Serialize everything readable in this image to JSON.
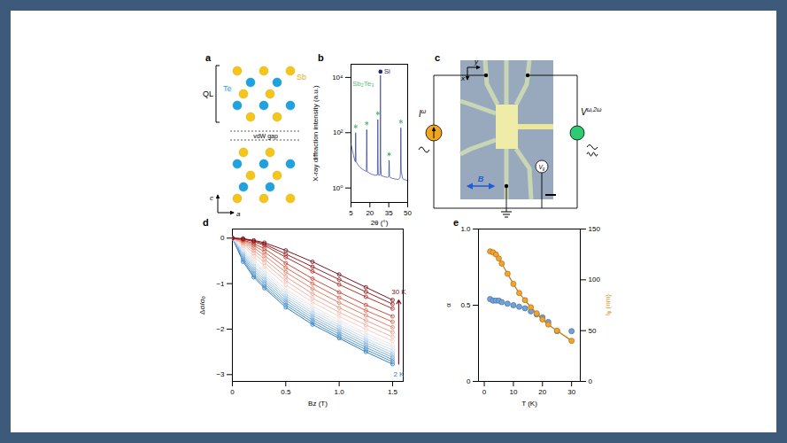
{
  "panels": {
    "a": {
      "letter": "a",
      "ql": "QL",
      "gap": "vdW gap",
      "axes": {
        "up": "c",
        "right": "a"
      },
      "atoms": [
        {
          "label": "Sb",
          "color": "#f5c518"
        },
        {
          "label": "Te",
          "color": "#1fa3de"
        }
      ]
    },
    "c": {
      "letter": "c",
      "axes": {
        "down": "x",
        "right": "y"
      },
      "current_source": {
        "text": "I",
        "sup": "ω",
        "color": "#f2a51f"
      },
      "voltmeter": {
        "text": "V",
        "sup": "ω,2ω",
        "color": "#2ecc71"
      },
      "gate": {
        "text": "V",
        "sub": "g"
      },
      "field": {
        "text": "B",
        "color": "#1f5bd6"
      }
    }
  },
  "chart_data": [
    {
      "panel": "b",
      "type": "line",
      "log": "y",
      "color": "#2b3a9e",
      "x_label": "2θ (°)",
      "y_label": "X-ray diffraction intensity (a.u.)",
      "xlim": [
        5,
        50
      ],
      "xticks": [
        5,
        20,
        35,
        50
      ],
      "ylim": [
        0.3,
        30000
      ],
      "yticks": [
        {
          "value": 1,
          "label": "10⁰"
        },
        {
          "value": 100,
          "label": "10²"
        },
        {
          "value": 10000,
          "label": "10⁴"
        }
      ],
      "x": [
        5,
        6,
        7,
        8,
        8.4,
        8.7,
        9,
        10,
        11,
        12,
        13,
        14,
        15,
        16,
        17,
        17.2,
        17.5,
        17.8,
        18,
        19,
        20,
        21,
        22,
        23,
        24,
        25,
        26,
        26.3,
        26.6,
        27,
        28,
        28.2,
        28.4,
        28.6,
        29,
        30,
        31,
        32,
        33,
        34,
        35,
        35.3,
        35.6,
        36,
        37,
        38,
        39,
        40,
        41,
        42,
        43,
        44,
        44.3,
        44.6,
        44.9,
        46,
        47,
        48,
        49,
        50
      ],
      "values": [
        40,
        24,
        15,
        10,
        9,
        100,
        9,
        7.5,
        6.5,
        5.8,
        5.2,
        4.8,
        4.5,
        4.2,
        4,
        4.5,
        130,
        4.5,
        3.8,
        3.6,
        3.4,
        3.2,
        3.1,
        3,
        2.9,
        2.9,
        3,
        300,
        3.2,
        2.9,
        3,
        8,
        12000,
        8,
        2.8,
        2.7,
        2.6,
        2.5,
        2.5,
        2.4,
        2.6,
        10,
        2.6,
        2.4,
        2.3,
        2.2,
        2.2,
        2.1,
        2.1,
        2,
        2.1,
        2.4,
        4,
        150,
        4,
        2.2,
        2,
        2,
        1.9,
        1.9
      ],
      "peaks": {
        "x": [
          8.7,
          17.5,
          26.3,
          35.3,
          44.6
        ],
        "y": [
          100,
          130,
          300,
          10,
          150
        ],
        "color": "#5cb87a",
        "marker": "asterisk"
      },
      "annotations": [
        {
          "text": "Sb₂Te₃",
          "x": 6,
          "y": 6000,
          "color": "#5cb87a"
        },
        {
          "text": "Si",
          "x": 28.4,
          "y": 12000,
          "color": "#1f2a7a",
          "marker": "circle"
        }
      ]
    },
    {
      "panel": "d",
      "type": "line",
      "marker": "circle",
      "x_label": "Bz (T)",
      "y_label": "Δσ/σ₀",
      "xlim": [
        0,
        1.6
      ],
      "xticks": [
        0,
        0.5,
        {
          "value": 1,
          "label": "1.0"
        },
        1.5
      ],
      "ylim": [
        -3.15,
        0.2
      ],
      "yticks": [
        0,
        {
          "value": -1,
          "label": "−1"
        },
        {
          "value": -2,
          "label": "−2"
        },
        {
          "value": -3,
          "label": "−3"
        }
      ],
      "x": [
        0,
        0.1,
        0.2,
        0.3,
        0.5,
        0.75,
        1,
        1.25,
        1.5
      ],
      "series": [
        {
          "name": "2 K",
          "color": "#2f7fc1",
          "values": [
            0,
            -0.52,
            -0.86,
            -1.1,
            -1.52,
            -1.9,
            -2.2,
            -2.5,
            -2.77
          ]
        },
        {
          "color": "#4a8fca",
          "values": [
            0,
            -0.48,
            -0.82,
            -1.06,
            -1.47,
            -1.85,
            -2.16,
            -2.45,
            -2.72
          ]
        },
        {
          "color": "#649fd2",
          "values": [
            0,
            -0.44,
            -0.77,
            -1.01,
            -1.42,
            -1.8,
            -2.11,
            -2.4,
            -2.67
          ]
        },
        {
          "color": "#7eafda",
          "values": [
            0,
            -0.4,
            -0.72,
            -0.96,
            -1.37,
            -1.75,
            -2.06,
            -2.35,
            -2.62
          ]
        },
        {
          "color": "#98bfe2",
          "values": [
            0,
            -0.36,
            -0.67,
            -0.91,
            -1.32,
            -1.7,
            -2.01,
            -2.3,
            -2.57
          ]
        },
        {
          "color": "#b1cfea",
          "values": [
            0,
            -0.32,
            -0.62,
            -0.86,
            -1.27,
            -1.65,
            -1.96,
            -2.25,
            -2.52
          ]
        },
        {
          "color": "#c9ddf0",
          "values": [
            0,
            -0.28,
            -0.57,
            -0.81,
            -1.22,
            -1.6,
            -1.91,
            -2.2,
            -2.46
          ]
        },
        {
          "color": "#dfe9f3",
          "values": [
            0,
            -0.25,
            -0.52,
            -0.76,
            -1.17,
            -1.55,
            -1.86,
            -2.14,
            -2.4
          ]
        },
        {
          "color": "#f3e4e0",
          "values": [
            0,
            -0.22,
            -0.47,
            -0.71,
            -1.12,
            -1.5,
            -1.81,
            -2.09,
            -2.35
          ]
        },
        {
          "color": "#f6d0c6",
          "values": [
            0,
            -0.17,
            -0.4,
            -0.62,
            -1.03,
            -1.41,
            -1.72,
            -2,
            -2.26
          ]
        },
        {
          "color": "#f2b8a8",
          "values": [
            0,
            -0.13,
            -0.33,
            -0.54,
            -0.94,
            -1.32,
            -1.63,
            -1.91,
            -2.17
          ]
        },
        {
          "color": "#ec9e8a",
          "values": [
            0,
            -0.1,
            -0.27,
            -0.46,
            -0.85,
            -1.22,
            -1.53,
            -1.81,
            -2.07
          ]
        },
        {
          "color": "#e4826c",
          "values": [
            0,
            -0.07,
            -0.21,
            -0.38,
            -0.75,
            -1.11,
            -1.42,
            -1.7,
            -1.96
          ]
        },
        {
          "color": "#d96650",
          "values": [
            0,
            -0.05,
            -0.16,
            -0.3,
            -0.65,
            -1,
            -1.31,
            -1.59,
            -1.84
          ]
        },
        {
          "color": "#c94b3b",
          "values": [
            0,
            -0.04,
            -0.12,
            -0.23,
            -0.55,
            -0.89,
            -1.19,
            -1.47,
            -1.72
          ]
        },
        {
          "color": "#b3332c",
          "values": [
            0,
            -0.02,
            -0.08,
            -0.16,
            -0.42,
            -0.73,
            -1.02,
            -1.29,
            -1.55
          ]
        },
        {
          "color": "#9a2127",
          "values": [
            0,
            -0.02,
            -0.06,
            -0.13,
            -0.35,
            -0.63,
            -0.91,
            -1.18,
            -1.45
          ]
        },
        {
          "name": "30 K",
          "color": "#7d1420",
          "values": [
            0,
            -0.01,
            -0.05,
            -0.1,
            -0.27,
            -0.52,
            -0.8,
            -1.08,
            -1.36
          ]
        }
      ]
    },
    {
      "panel": "e",
      "type": "scatter",
      "x_label": "T (K)",
      "y_label": "α",
      "y2_label": "lᵩ (nm)",
      "xlim": [
        -2,
        33
      ],
      "xticks": [
        0,
        10,
        20,
        30
      ],
      "ylim": [
        0,
        1
      ],
      "yticks": [
        0,
        0.5,
        {
          "value": 1,
          "label": "1.0"
        }
      ],
      "y2lim": [
        0,
        150
      ],
      "y2ticks": [
        0,
        50,
        100,
        150
      ],
      "x": [
        2,
        3,
        4,
        5,
        6,
        8,
        10,
        12,
        14,
        16,
        18,
        20,
        22,
        25,
        30
      ],
      "series": [
        {
          "type": "scatter",
          "marker": "circle",
          "color": "#6fa3dc",
          "values": [
            0.54,
            0.53,
            0.53,
            0.53,
            0.52,
            0.51,
            0.5,
            0.49,
            0.48,
            0.46,
            0.44,
            0.42,
            0.39,
            0.33,
            0.33
          ]
        },
        {
          "type": "line",
          "marker": "circle",
          "color": "#f4a42c",
          "axis": "y2",
          "values": [
            128,
            127,
            125,
            121,
            116,
            106,
            96,
            87,
            80,
            73,
            67,
            61,
            56,
            50,
            40
          ]
        }
      ]
    }
  ]
}
